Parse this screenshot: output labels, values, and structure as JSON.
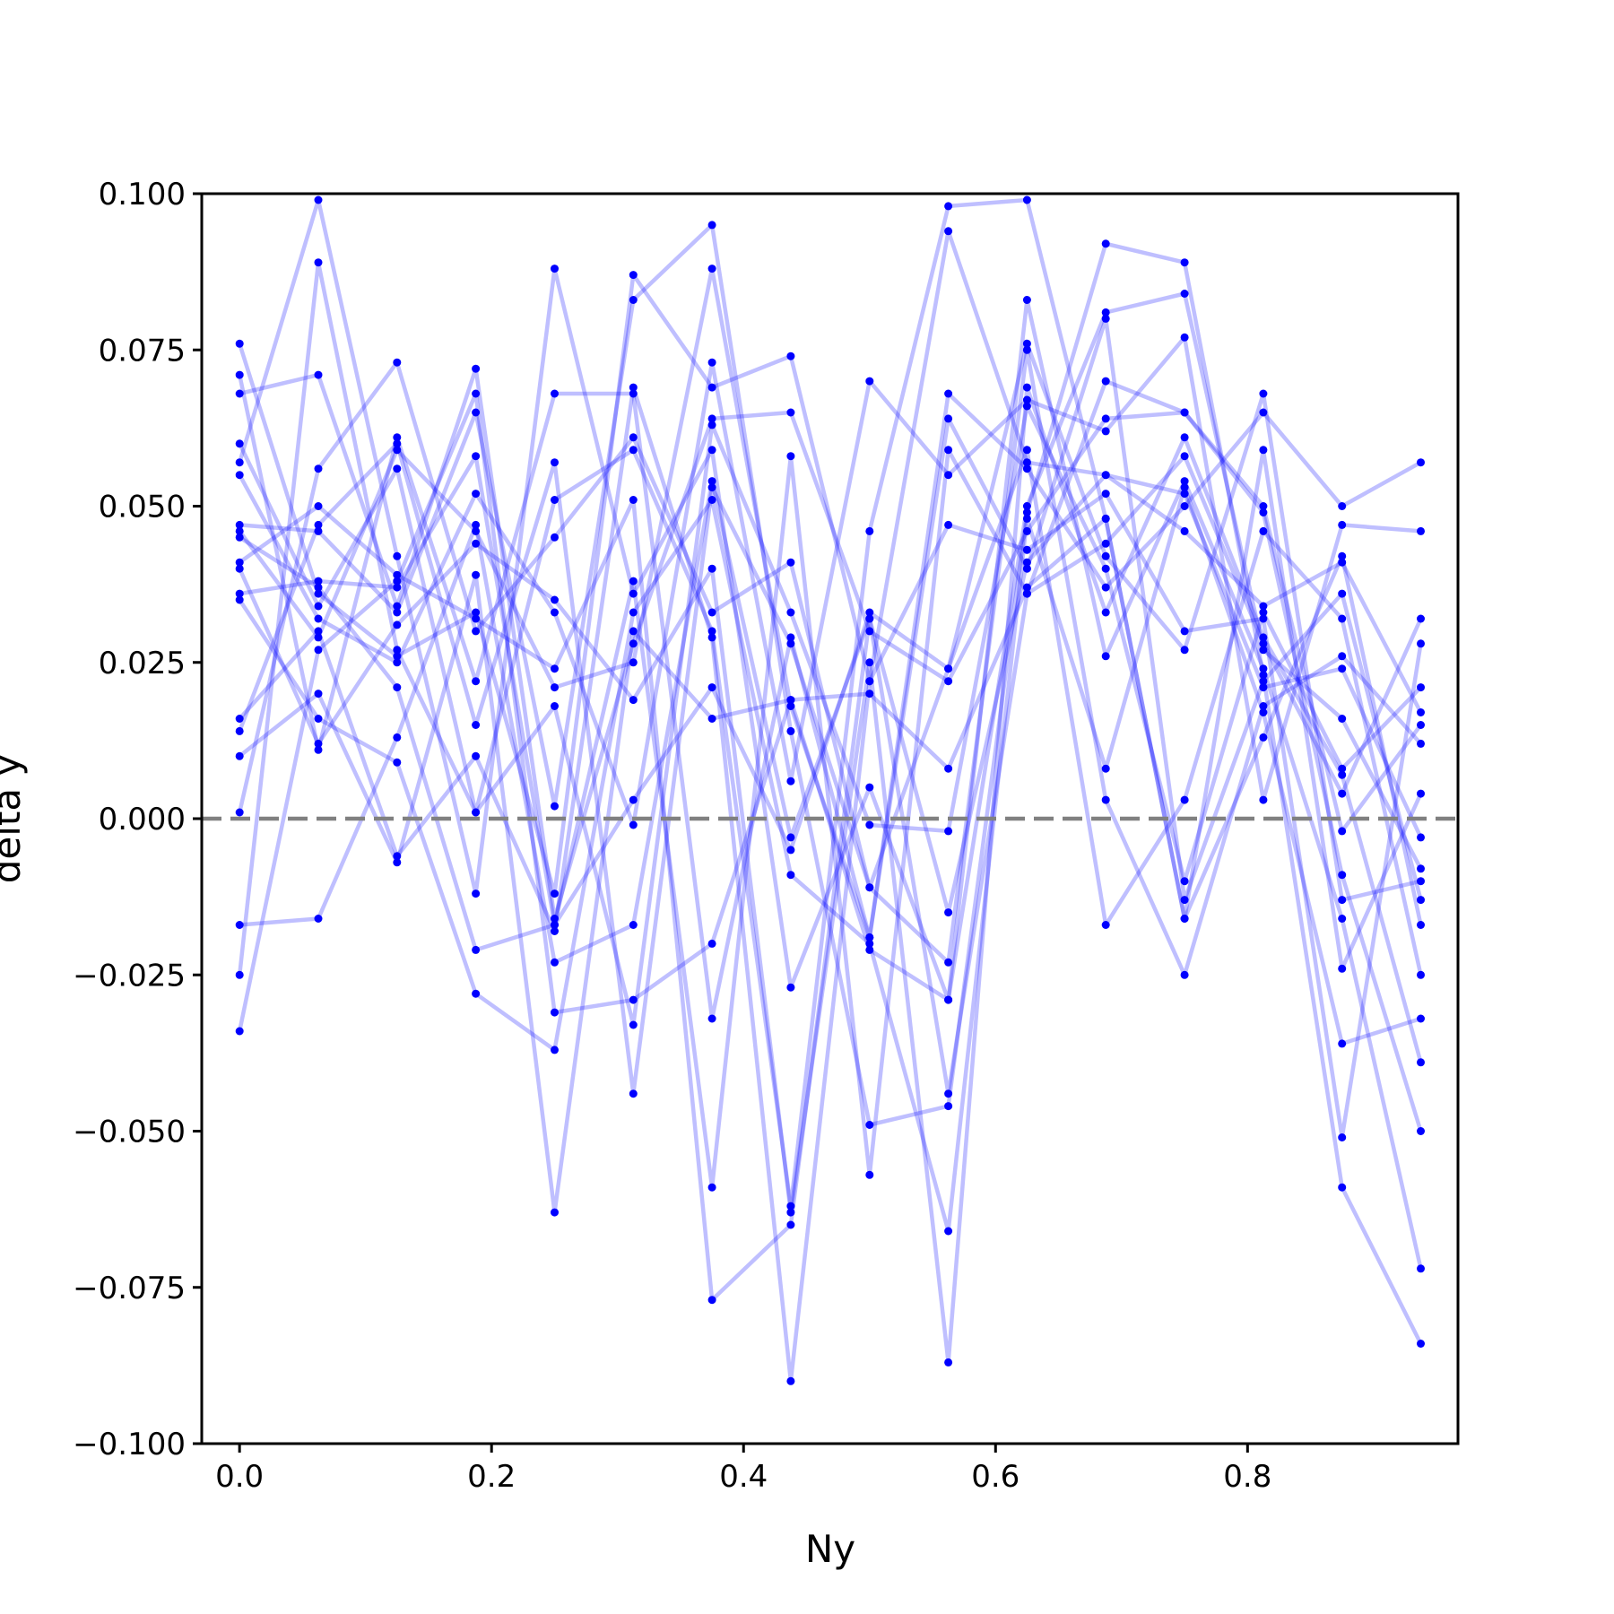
{
  "chart_data": {
    "type": "line",
    "xlabel": "Ny",
    "ylabel": "delta y",
    "xlim": [
      -0.03,
      0.967
    ],
    "ylim": [
      -0.1,
      0.1
    ],
    "xticks": [
      0.0,
      0.2,
      0.4,
      0.6,
      0.8
    ],
    "xtick_labels": [
      "0.0",
      "0.2",
      "0.4",
      "0.6",
      "0.8"
    ],
    "yticks": [
      -0.1,
      -0.075,
      -0.05,
      -0.025,
      0.0,
      0.025,
      0.05,
      0.075,
      0.1
    ],
    "ytick_labels": [
      "−0.100",
      "−0.075",
      "−0.050",
      "−0.025",
      "0.000",
      "0.025",
      "0.050",
      "0.075",
      "0.100"
    ],
    "reference_line": {
      "y": 0.0,
      "style": "dashed",
      "color": "#808080"
    },
    "grid": false,
    "legend": "none",
    "series_color": "#0000ff",
    "x": [
      0.0,
      0.0625,
      0.125,
      0.1875,
      0.25,
      0.3125,
      0.375,
      0.4375,
      0.5,
      0.5625,
      0.625,
      0.6875,
      0.75,
      0.8125,
      0.875,
      0.9375
    ],
    "series": [
      {
        "values": [
          0.076,
          0.036,
          0.026,
          0.033,
          -0.012,
          0.087,
          0.069,
          0.074,
          0.022,
          0.094,
          0.057,
          0.055,
          0.046,
          0.034,
          0.041,
          0.017
        ]
      },
      {
        "values": [
          0.071,
          0.011,
          0.061,
          0.022,
          0.068,
          0.068,
          -0.032,
          0.029,
          -0.019,
          0.064,
          0.04,
          0.08,
          -0.013,
          0.022,
          0.036,
          -0.013
        ]
      },
      {
        "values": [
          0.068,
          0.071,
          0.034,
          0.072,
          -0.016,
          0.028,
          0.064,
          0.065,
          0.03,
          0.022,
          0.046,
          0.064,
          0.065,
          0.05,
          -0.002,
          0.015
        ]
      },
      {
        "values": [
          0.06,
          0.034,
          0.056,
          0.001,
          0.051,
          0.059,
          0.03,
          -0.062,
          0.046,
          0.098,
          0.099,
          0.048,
          -0.016,
          0.013,
          0.042,
          -0.017
        ]
      },
      {
        "values": [
          0.057,
          0.099,
          0.042,
          -0.012,
          0.088,
          0.036,
          0.059,
          -0.027,
          0.005,
          -0.029,
          0.083,
          0.026,
          0.054,
          0.024,
          -0.016,
          -0.072
        ]
      },
      {
        "values": [
          0.055,
          0.032,
          0.025,
          0.052,
          0.033,
          -0.001,
          0.073,
          0.006,
          0.07,
          0.055,
          0.067,
          0.062,
          0.077,
          0.003,
          0.047,
          0.046
        ]
      },
      {
        "values": [
          0.047,
          0.046,
          0.033,
          0.065,
          0.002,
          0.083,
          0.095,
          0.014,
          -0.049,
          -0.046,
          0.049,
          0.092,
          0.089,
          0.023,
          -0.059,
          -0.084
        ]
      },
      {
        "values": [
          0.046,
          0.029,
          0.059,
          0.046,
          0.021,
          0.025,
          0.088,
          0.018,
          -0.019,
          0.068,
          0.056,
          0.037,
          0.05,
          0.065,
          0.05,
          0.057
        ]
      },
      {
        "values": [
          0.045,
          0.037,
          0.021,
          -0.021,
          -0.017,
          0.003,
          0.021,
          -0.005,
          0.033,
          0.024,
          0.076,
          0.042,
          0.027,
          0.068,
          -0.013,
          -0.01
        ]
      },
      {
        "values": [
          0.041,
          0.05,
          0.039,
          0.032,
          0.024,
          0.051,
          -0.077,
          -0.065,
          0.032,
          -0.015,
          0.041,
          0.055,
          0.052,
          0.021,
          0.024,
          -0.003
        ]
      },
      {
        "values": [
          0.04,
          0.012,
          0.031,
          0.044,
          0.035,
          0.019,
          0.04,
          -0.063,
          0.025,
          -0.087,
          0.069,
          0.033,
          0.061,
          0.029,
          0.007,
          -0.039
        ]
      },
      {
        "values": [
          0.036,
          0.038,
          0.037,
          0.058,
          -0.017,
          0.038,
          -0.059,
          0.058,
          -0.057,
          0.059,
          0.036,
          0.044,
          0.058,
          0.028,
          0.004,
          0.032
        ]
      },
      {
        "values": [
          0.035,
          0.016,
          0.009,
          -0.028,
          -0.037,
          0.033,
          0.051,
          -0.009,
          -0.02,
          -0.066,
          0.048,
          0.008,
          0.053,
          0.017,
          -0.036,
          -0.032
        ]
      },
      {
        "values": [
          0.016,
          0.03,
          -0.006,
          0.01,
          -0.018,
          0.069,
          0.029,
          -0.09,
          0.022,
          0.047,
          0.043,
          0.052,
          0.03,
          0.032,
          -0.051,
          0.028
        ]
      },
      {
        "values": [
          0.014,
          0.047,
          0.06,
          0.015,
          0.057,
          -0.044,
          0.053,
          0.028,
          -0.011,
          -0.023,
          0.075,
          0.003,
          -0.025,
          0.018,
          0.026,
          0.012
        ]
      },
      {
        "values": [
          0.01,
          0.02,
          -0.007,
          0.039,
          -0.063,
          0.03,
          0.016,
          0.019,
          0.02,
          0.008,
          0.037,
          0.048,
          -0.016,
          0.059,
          -0.024,
          0.004
        ]
      },
      {
        "values": [
          0.001,
          0.056,
          0.073,
          0.03,
          0.045,
          0.061,
          0.033,
          0.041,
          -0.011,
          0.024,
          0.059,
          -0.017,
          0.003,
          0.046,
          0.032,
          -0.025
        ]
      },
      {
        "values": [
          -0.017,
          -0.016,
          0.013,
          0.047,
          -0.023,
          -0.017,
          0.054,
          -0.003,
          0.032,
          -0.044,
          0.036,
          0.07,
          0.065,
          0.049,
          -0.009,
          -0.05
        ]
      },
      {
        "values": [
          -0.025,
          0.089,
          0.027,
          0.001,
          0.018,
          -0.033,
          0.063,
          0.033,
          -0.001,
          -0.002,
          0.066,
          0.04,
          -0.01,
          0.033,
          0.008,
          0.021
        ]
      },
      {
        "values": [
          -0.034,
          0.027,
          0.038,
          0.068,
          -0.031,
          -0.029,
          -0.02,
          0.019,
          -0.021,
          -0.029,
          0.05,
          0.081,
          0.084,
          0.027,
          0.016,
          -0.008
        ]
      }
    ]
  }
}
